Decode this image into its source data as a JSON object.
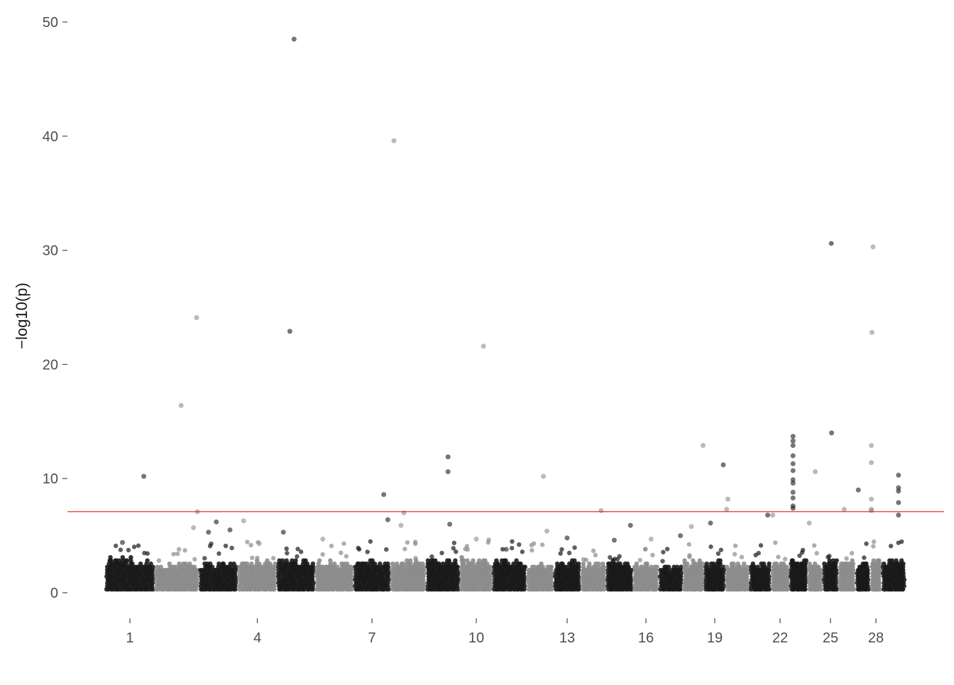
{
  "chart_data": {
    "type": "scatter",
    "subtype": "manhattan",
    "title": "",
    "xlabel": "",
    "ylabel": "−log10(p)",
    "ylim": [
      0,
      50
    ],
    "yticks": [
      0,
      10,
      20,
      30,
      40,
      50
    ],
    "x_tick_labels": [
      "1",
      "4",
      "7",
      "10",
      "13",
      "16",
      "19",
      "22",
      "25",
      "28"
    ],
    "grid": false,
    "legend": "none",
    "threshold_line": {
      "y": 7.1,
      "color": "#e31a1c"
    },
    "colors": {
      "odd_chromosome": "#1a1a1a",
      "even_chromosome": "#8c8c8c",
      "threshold": "#e31a1c"
    },
    "chromosomes": [
      {
        "chr": 1,
        "labeled": true,
        "baseline_max": 3.2,
        "top_hits": [
          {
            "rel": 0.78,
            "p": 10.2
          },
          {
            "rel": 0.35,
            "p": 4.4
          }
        ]
      },
      {
        "chr": 2,
        "labeled": false,
        "baseline_max": 2.7,
        "top_hits": [
          {
            "rel": 0.6,
            "p": 16.4
          },
          {
            "rel": 0.95,
            "p": 24.1
          },
          {
            "rel": 0.97,
            "p": 7.1
          },
          {
            "rel": 0.88,
            "p": 5.7
          }
        ]
      },
      {
        "chr": 3,
        "labeled": false,
        "baseline_max": 2.8,
        "top_hits": [
          {
            "rel": 0.45,
            "p": 6.2
          },
          {
            "rel": 0.8,
            "p": 5.5
          },
          {
            "rel": 0.25,
            "p": 5.3
          }
        ]
      },
      {
        "chr": 4,
        "labeled": true,
        "baseline_max": 3.0,
        "top_hits": [
          {
            "rel": 0.15,
            "p": 6.3
          },
          {
            "rel": 0.55,
            "p": 4.3
          }
        ]
      },
      {
        "chr": 5,
        "labeled": false,
        "baseline_max": 3.1,
        "top_hits": [
          {
            "rel": 0.45,
            "p": 48.5
          },
          {
            "rel": 0.34,
            "p": 22.9
          },
          {
            "rel": 0.17,
            "p": 5.3
          }
        ]
      },
      {
        "chr": 6,
        "labeled": false,
        "baseline_max": 2.9,
        "top_hits": [
          {
            "rel": 0.2,
            "p": 4.7
          }
        ]
      },
      {
        "chr": 7,
        "labeled": true,
        "baseline_max": 3.0,
        "top_hits": [
          {
            "rel": 0.82,
            "p": 8.6
          },
          {
            "rel": 0.93,
            "p": 6.4
          }
        ]
      },
      {
        "chr": 8,
        "labeled": false,
        "baseline_max": 2.9,
        "top_hits": [
          {
            "rel": 0.1,
            "p": 39.6
          },
          {
            "rel": 0.38,
            "p": 7.0
          },
          {
            "rel": 0.3,
            "p": 5.9
          }
        ]
      },
      {
        "chr": 9,
        "labeled": false,
        "baseline_max": 3.1,
        "top_hits": [
          {
            "rel": 0.65,
            "p": 11.9
          },
          {
            "rel": 0.65,
            "p": 10.6
          },
          {
            "rel": 0.7,
            "p": 6.0
          }
        ]
      },
      {
        "chr": 10,
        "labeled": true,
        "baseline_max": 3.2,
        "top_hits": [
          {
            "rel": 0.72,
            "p": 21.6
          },
          {
            "rel": 0.5,
            "p": 4.7
          }
        ]
      },
      {
        "chr": 11,
        "labeled": false,
        "baseline_max": 3.0,
        "top_hits": [
          {
            "rel": 0.4,
            "p": 3.8
          }
        ]
      },
      {
        "chr": 12,
        "labeled": false,
        "baseline_max": 2.8,
        "top_hits": [
          {
            "rel": 0.62,
            "p": 10.2
          },
          {
            "rel": 0.75,
            "p": 5.4
          }
        ]
      },
      {
        "chr": 13,
        "labeled": true,
        "baseline_max": 2.9,
        "top_hits": [
          {
            "rel": 0.5,
            "p": 4.8
          }
        ]
      },
      {
        "chr": 14,
        "labeled": false,
        "baseline_max": 2.8,
        "top_hits": [
          {
            "rel": 0.8,
            "p": 7.2
          }
        ]
      },
      {
        "chr": 15,
        "labeled": false,
        "baseline_max": 2.9,
        "top_hits": [
          {
            "rel": 0.9,
            "p": 5.9
          },
          {
            "rel": 0.3,
            "p": 4.6
          }
        ]
      },
      {
        "chr": 16,
        "labeled": true,
        "baseline_max": 2.7,
        "top_hits": [
          {
            "rel": 0.7,
            "p": 4.7
          }
        ]
      },
      {
        "chr": 17,
        "labeled": false,
        "baseline_max": 2.6,
        "top_hits": [
          {
            "rel": 0.9,
            "p": 5.0
          }
        ]
      },
      {
        "chr": 18,
        "labeled": false,
        "baseline_max": 3.0,
        "top_hits": [
          {
            "rel": 0.95,
            "p": 12.9
          },
          {
            "rel": 0.4,
            "p": 5.8
          }
        ]
      },
      {
        "chr": 19,
        "labeled": true,
        "baseline_max": 2.9,
        "top_hits": [
          {
            "rel": 0.9,
            "p": 11.2
          },
          {
            "rel": 0.3,
            "p": 6.1
          }
        ]
      },
      {
        "chr": 20,
        "labeled": false,
        "baseline_max": 2.7,
        "top_hits": [
          {
            "rel": 0.1,
            "p": 8.2
          },
          {
            "rel": 0.05,
            "p": 7.3
          }
        ]
      },
      {
        "chr": 21,
        "labeled": false,
        "baseline_max": 2.8,
        "top_hits": [
          {
            "rel": 0.85,
            "p": 6.8
          }
        ]
      },
      {
        "chr": 22,
        "labeled": true,
        "baseline_max": 2.9,
        "top_hits": [
          {
            "rel": 0.1,
            "p": 6.8
          }
        ]
      },
      {
        "chr": 23,
        "labeled": false,
        "baseline_max": 3.0,
        "top_hits": [
          {
            "rel": 0.2,
            "p": 13.7
          },
          {
            "rel": 0.2,
            "p": 13.3
          },
          {
            "rel": 0.2,
            "p": 12.9
          },
          {
            "rel": 0.2,
            "p": 12.0
          },
          {
            "rel": 0.2,
            "p": 11.3
          },
          {
            "rel": 0.2,
            "p": 10.7
          },
          {
            "rel": 0.2,
            "p": 9.9
          },
          {
            "rel": 0.2,
            "p": 9.6
          },
          {
            "rel": 0.2,
            "p": 8.8
          },
          {
            "rel": 0.2,
            "p": 8.3
          },
          {
            "rel": 0.2,
            "p": 7.6
          },
          {
            "rel": 0.2,
            "p": 7.4
          }
        ]
      },
      {
        "chr": 24,
        "labeled": false,
        "baseline_max": 2.8,
        "top_hits": [
          {
            "rel": 0.5,
            "p": 10.6
          },
          {
            "rel": 0.1,
            "p": 6.1
          }
        ]
      },
      {
        "chr": 25,
        "labeled": true,
        "baseline_max": 3.1,
        "top_hits": [
          {
            "rel": 0.55,
            "p": 30.6
          },
          {
            "rel": 0.57,
            "p": 14.0
          }
        ]
      },
      {
        "chr": 26,
        "labeled": false,
        "baseline_max": 2.9,
        "top_hits": [
          {
            "rel": 0.35,
            "p": 7.3
          }
        ]
      },
      {
        "chr": 27,
        "labeled": false,
        "baseline_max": 2.8,
        "top_hits": [
          {
            "rel": 0.2,
            "p": 9.0
          }
        ]
      },
      {
        "chr": 28,
        "labeled": true,
        "baseline_max": 3.0,
        "top_hits": [
          {
            "rel": 0.25,
            "p": 30.3
          },
          {
            "rel": 0.15,
            "p": 22.8
          },
          {
            "rel": 0.1,
            "p": 12.9
          },
          {
            "rel": 0.1,
            "p": 11.4
          },
          {
            "rel": 0.1,
            "p": 8.2
          },
          {
            "rel": 0.1,
            "p": 7.3
          },
          {
            "rel": 0.1,
            "p": 7.2
          }
        ]
      },
      {
        "chr": 29,
        "labeled": false,
        "baseline_max": 3.0,
        "top_hits": [
          {
            "rel": 0.7,
            "p": 10.3
          },
          {
            "rel": 0.7,
            "p": 9.2
          },
          {
            "rel": 0.7,
            "p": 8.9
          },
          {
            "rel": 0.7,
            "p": 7.9
          },
          {
            "rel": 0.7,
            "p": 6.8
          }
        ]
      }
    ]
  }
}
